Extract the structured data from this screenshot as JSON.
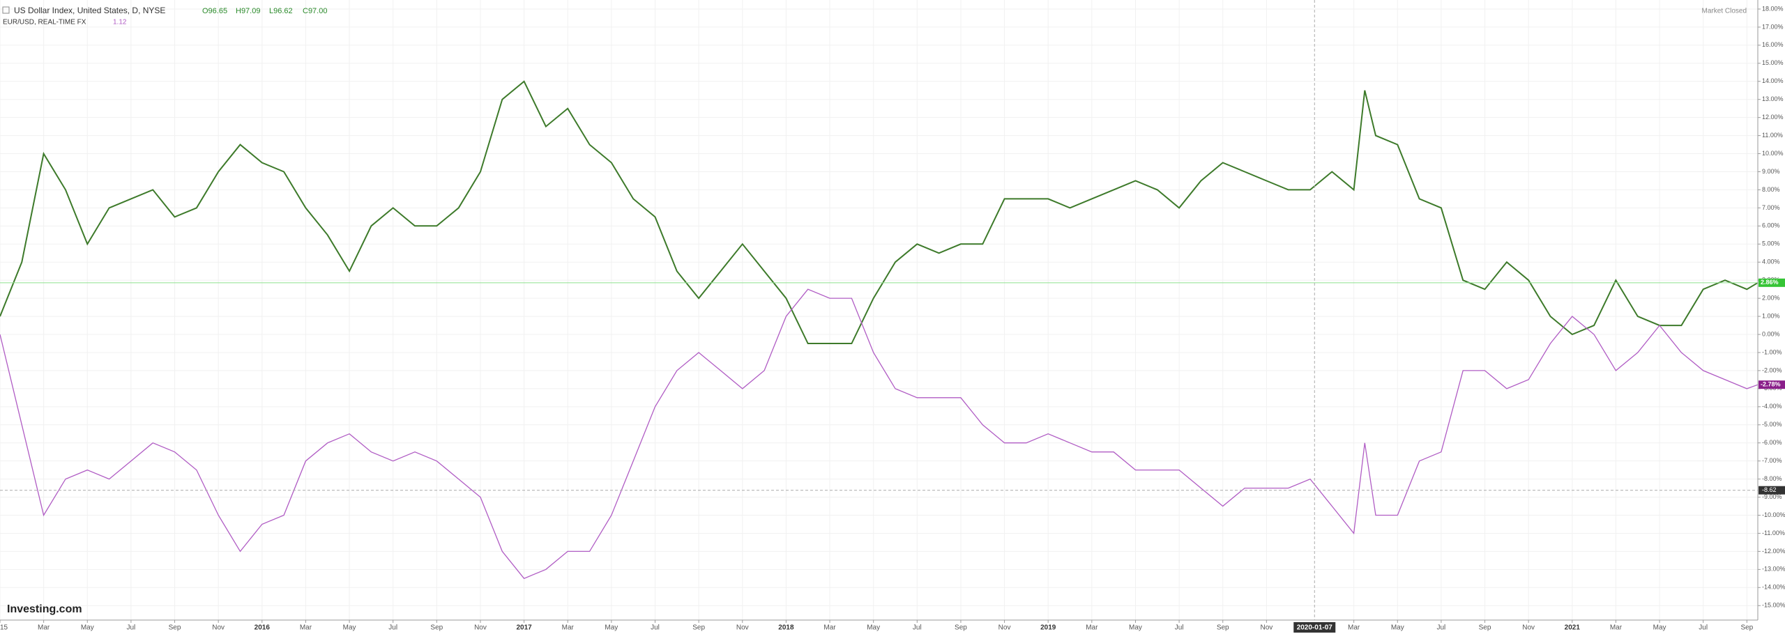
{
  "chart_data": {
    "type": "line",
    "title": "US Dollar Index, United States, D, NYSE",
    "ohlc": [
      "O96.65",
      "H97.09",
      "L96.62",
      "C97.00"
    ],
    "status": "Market Closed",
    "logo": "Investing.com",
    "grid": true,
    "x": [
      0,
      1,
      2,
      3,
      4,
      5,
      6,
      7,
      8,
      9,
      10,
      11,
      12,
      13,
      14,
      15,
      16,
      17,
      18,
      19,
      20,
      21,
      22,
      23,
      24,
      25,
      26,
      27,
      28,
      29,
      30,
      31,
      32,
      33,
      34,
      35,
      36,
      37,
      38,
      39,
      40,
      41,
      42,
      43,
      44,
      45,
      46,
      47,
      48,
      49,
      50,
      51,
      52,
      53,
      54,
      55,
      56,
      57,
      58,
      59,
      60,
      61,
      62,
      62.5,
      63,
      64,
      65,
      66,
      67,
      68,
      69,
      70,
      71,
      72,
      73,
      74,
      75,
      76,
      77,
      78,
      79,
      80,
      80.5
    ],
    "series": [
      {
        "name": "US Dollar Index, United States, D, NYSE",
        "color": "#3d7a2a",
        "last_label": "2.86%",
        "label_color": "#35c435",
        "values": [
          1,
          4,
          10,
          8,
          5,
          7,
          7.5,
          8,
          6.5,
          7,
          9,
          10.5,
          9.5,
          9,
          7,
          5.5,
          3.5,
          6,
          7,
          6,
          6,
          7,
          9,
          13,
          14,
          11.5,
          12.5,
          10.5,
          9.5,
          7.5,
          6.5,
          3.5,
          2,
          3.5,
          5,
          3.5,
          2,
          -0.5,
          -0.5,
          -0.5,
          2,
          4,
          5,
          4.5,
          5,
          5,
          7.5,
          7.5,
          7.5,
          7,
          7.5,
          8,
          8.5,
          8,
          7,
          8.5,
          9.5,
          9,
          8.5,
          8,
          8,
          9,
          8,
          13.5,
          11,
          10.5,
          7.5,
          7,
          3,
          2.5,
          4,
          3,
          1,
          0,
          0.5,
          3,
          1,
          0.5,
          0.5,
          2.5,
          3,
          2.5,
          2.86
        ]
      },
      {
        "name": "EUR/USD, REAL-TIME FX",
        "price": "1.12",
        "color": "#b05cc4",
        "last_label": "-2.78%",
        "label_color": "#8a1f8a",
        "values": [
          0,
          -5,
          -10,
          -8,
          -7.5,
          -8,
          -7,
          -6,
          -6.5,
          -7.5,
          -10,
          -12,
          -10.5,
          -10,
          -7,
          -6,
          -5.5,
          -6.5,
          -7,
          -6.5,
          -7,
          -8,
          -9,
          -12,
          -13.5,
          -13,
          -12,
          -12,
          -10,
          -7,
          -4,
          -2,
          -1,
          -2,
          -3,
          -2,
          1,
          2.5,
          2,
          2,
          -1,
          -3,
          -3.5,
          -3.5,
          -3.5,
          -5,
          -6,
          -6,
          -5.5,
          -6,
          -6.5,
          -6.5,
          -7.5,
          -7.5,
          -7.5,
          -8.5,
          -9.5,
          -8.5,
          -8.5,
          -8.5,
          -8,
          -9.5,
          -11,
          -6,
          -10,
          -10,
          -7,
          -6.5,
          -2,
          -2,
          -3,
          -2.5,
          -0.5,
          1,
          0,
          -2,
          -1,
          0.5,
          -1,
          -2,
          -2.5,
          -3,
          -2.78
        ]
      }
    ],
    "crosshair": {
      "x": 60.2,
      "x_label": "2020-01-07",
      "y": -8.62,
      "y_label": "-8.62"
    },
    "xlim": [
      0,
      80.5
    ],
    "ylim": [
      -15.8,
      18.5
    ],
    "xticks": [
      {
        "value": 0,
        "label": "15"
      },
      {
        "value": 2,
        "label": "Mar"
      },
      {
        "value": 4,
        "label": "May"
      },
      {
        "value": 6,
        "label": "Jul"
      },
      {
        "value": 8,
        "label": "Sep"
      },
      {
        "value": 10,
        "label": "Nov"
      },
      {
        "value": 12,
        "label": "2016"
      },
      {
        "value": 14,
        "label": "Mar"
      },
      {
        "value": 16,
        "label": "May"
      },
      {
        "value": 18,
        "label": "Jul"
      },
      {
        "value": 20,
        "label": "Sep"
      },
      {
        "value": 22,
        "label": "Nov"
      },
      {
        "value": 24,
        "label": "2017"
      },
      {
        "value": 26,
        "label": "Mar"
      },
      {
        "value": 28,
        "label": "May"
      },
      {
        "value": 30,
        "label": "Jul"
      },
      {
        "value": 32,
        "label": "Sep"
      },
      {
        "value": 34,
        "label": "Nov"
      },
      {
        "value": 36,
        "label": "2018"
      },
      {
        "value": 38,
        "label": "Mar"
      },
      {
        "value": 40,
        "label": "May"
      },
      {
        "value": 42,
        "label": "Jul"
      },
      {
        "value": 44,
        "label": "Sep"
      },
      {
        "value": 46,
        "label": "Nov"
      },
      {
        "value": 48,
        "label": "2019"
      },
      {
        "value": 50,
        "label": "Mar"
      },
      {
        "value": 52,
        "label": "May"
      },
      {
        "value": 54,
        "label": "Jul"
      },
      {
        "value": 56,
        "label": "Sep"
      },
      {
        "value": 58,
        "label": "Nov"
      },
      {
        "value": 62,
        "label": "Mar"
      },
      {
        "value": 64,
        "label": "May"
      },
      {
        "value": 66,
        "label": "Jul"
      },
      {
        "value": 68,
        "label": "Sep"
      },
      {
        "value": 70,
        "label": "Nov"
      },
      {
        "value": 72,
        "label": "2021"
      },
      {
        "value": 74,
        "label": "Mar"
      },
      {
        "value": 76,
        "label": "May"
      },
      {
        "value": 78,
        "label": "Jul"
      },
      {
        "value": 80,
        "label": "Sep"
      }
    ],
    "yticks": [
      {
        "value": 18,
        "label": "18.00%"
      },
      {
        "value": 17,
        "label": "17.00%"
      },
      {
        "value": 16,
        "label": "16.00%"
      },
      {
        "value": 15,
        "label": "15.00%"
      },
      {
        "value": 14,
        "label": "14.00%"
      },
      {
        "value": 13,
        "label": "13.00%"
      },
      {
        "value": 12,
        "label": "12.00%"
      },
      {
        "value": 11,
        "label": "11.00%"
      },
      {
        "value": 10,
        "label": "10.00%"
      },
      {
        "value": 9,
        "label": "9.00%"
      },
      {
        "value": 8,
        "label": "8.00%"
      },
      {
        "value": 7,
        "label": "7.00%"
      },
      {
        "value": 6,
        "label": "6.00%"
      },
      {
        "value": 5,
        "label": "5.00%"
      },
      {
        "value": 4,
        "label": "4.00%"
      },
      {
        "value": 3,
        "label": "3.00%"
      },
      {
        "value": 2,
        "label": "2.00%"
      },
      {
        "value": 1,
        "label": "1.00%"
      },
      {
        "value": 0,
        "label": "0.00%"
      },
      {
        "value": -1,
        "label": "-1.00%"
      },
      {
        "value": -2,
        "label": "-2.00%"
      },
      {
        "value": -3,
        "label": "-3.00%"
      },
      {
        "value": -4,
        "label": "-4.00%"
      },
      {
        "value": -5,
        "label": "-5.00%"
      },
      {
        "value": -6,
        "label": "-6.00%"
      },
      {
        "value": -7,
        "label": "-7.00%"
      },
      {
        "value": -8,
        "label": "-8.00%"
      },
      {
        "value": -9,
        "label": "-9.00%"
      },
      {
        "value": -10,
        "label": "-10.00%"
      },
      {
        "value": -11,
        "label": "-11.00%"
      },
      {
        "value": -12,
        "label": "-12.00%"
      },
      {
        "value": -13,
        "label": "-13.00%"
      },
      {
        "value": -14,
        "label": "-14.00%"
      },
      {
        "value": -15,
        "label": "-15.00%"
      }
    ]
  }
}
